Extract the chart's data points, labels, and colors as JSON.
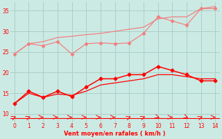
{
  "x": [
    0,
    1,
    2,
    3,
    4,
    5,
    6,
    7,
    8,
    9,
    10,
    11,
    12,
    13,
    14
  ],
  "light_upper": [
    24.5,
    27.0,
    26.5,
    27.5,
    24.5,
    27.0,
    27.2,
    27.0,
    27.2,
    29.5,
    33.5,
    32.5,
    31.5,
    35.5,
    35.5
  ],
  "light_lower": [
    24.5,
    27.0,
    27.5,
    28.5,
    28.8,
    29.2,
    29.5,
    30.0,
    30.5,
    31.0,
    33.0,
    33.5,
    33.5,
    35.5,
    36.0
  ],
  "dark_upper": [
    12.5,
    15.5,
    14.0,
    15.5,
    14.2,
    16.5,
    18.5,
    18.5,
    19.5,
    19.5,
    21.5,
    20.5,
    19.5,
    18.0,
    18.0
  ],
  "dark_lower": [
    12.5,
    15.0,
    14.0,
    14.8,
    14.5,
    15.5,
    17.0,
    17.5,
    18.0,
    18.5,
    19.5,
    19.5,
    19.0,
    18.5,
    18.5
  ],
  "light_color": "#f08080",
  "dark_color": "#ff0000",
  "background_color": "#cceae4",
  "grid_color": "#aacfc8",
  "xlabel": "Vent moyen/en rafales ( km/h )",
  "ylim": [
    8,
    37
  ],
  "xlim": [
    -0.3,
    14.3
  ],
  "yticks": [
    10,
    15,
    20,
    25,
    30,
    35
  ],
  "xticks": [
    0,
    1,
    2,
    3,
    4,
    5,
    6,
    7,
    8,
    9,
    10,
    11,
    12,
    13,
    14
  ],
  "arrow_angles": [
    45,
    45,
    0,
    0,
    0,
    0,
    0,
    0,
    45,
    45,
    315,
    0,
    315,
    45,
    0
  ]
}
